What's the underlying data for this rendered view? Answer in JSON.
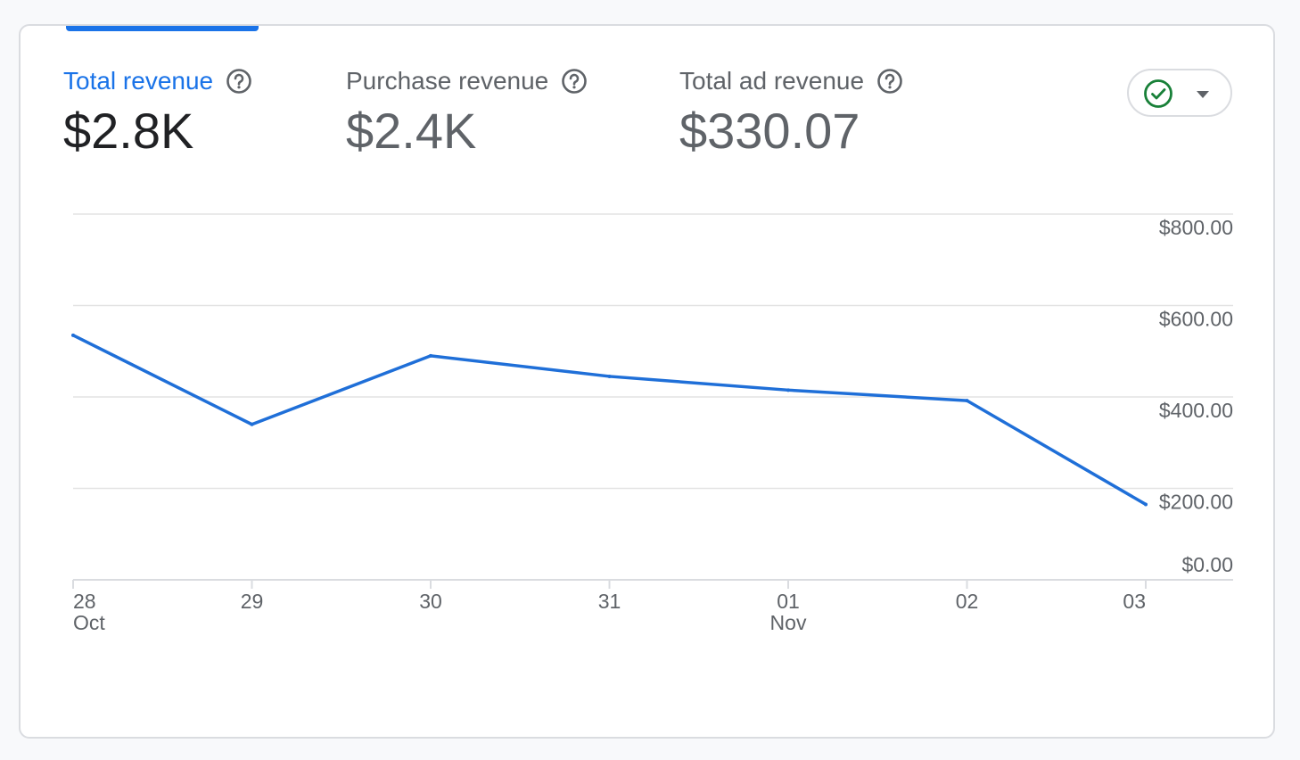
{
  "metrics": [
    {
      "label": "Total revenue",
      "value": "$2.8K",
      "active": true
    },
    {
      "label": "Purchase revenue",
      "value": "$2.4K",
      "active": false
    },
    {
      "label": "Total ad revenue",
      "value": "$330.07",
      "active": false
    }
  ],
  "icons": {
    "help": "help-circle-icon",
    "status": "check-circle-icon",
    "dropdown": "caret-down-icon"
  },
  "colors": {
    "accent": "#1a73e8",
    "line": "#1f6fd8",
    "status_green": "#188038",
    "text_primary": "#202124",
    "text_secondary": "#5f6368",
    "grid": "#e0e0e0"
  },
  "chart_data": {
    "type": "line",
    "x": [
      "28",
      "29",
      "30",
      "31",
      "01",
      "02",
      "03"
    ],
    "x_sublabels": [
      "Oct",
      "",
      "",
      "",
      "Nov",
      "",
      ""
    ],
    "series": [
      {
        "values": [
          535,
          340,
          490,
          445,
          415,
          392,
          165
        ]
      }
    ],
    "ylim": [
      0,
      800
    ],
    "yticks": [
      0,
      200,
      400,
      600,
      800
    ],
    "ytick_labels": [
      "$0.00",
      "$200.00",
      "$400.00",
      "$600.00",
      "$800.00"
    ],
    "yaxis_side": "right",
    "grid": true
  }
}
